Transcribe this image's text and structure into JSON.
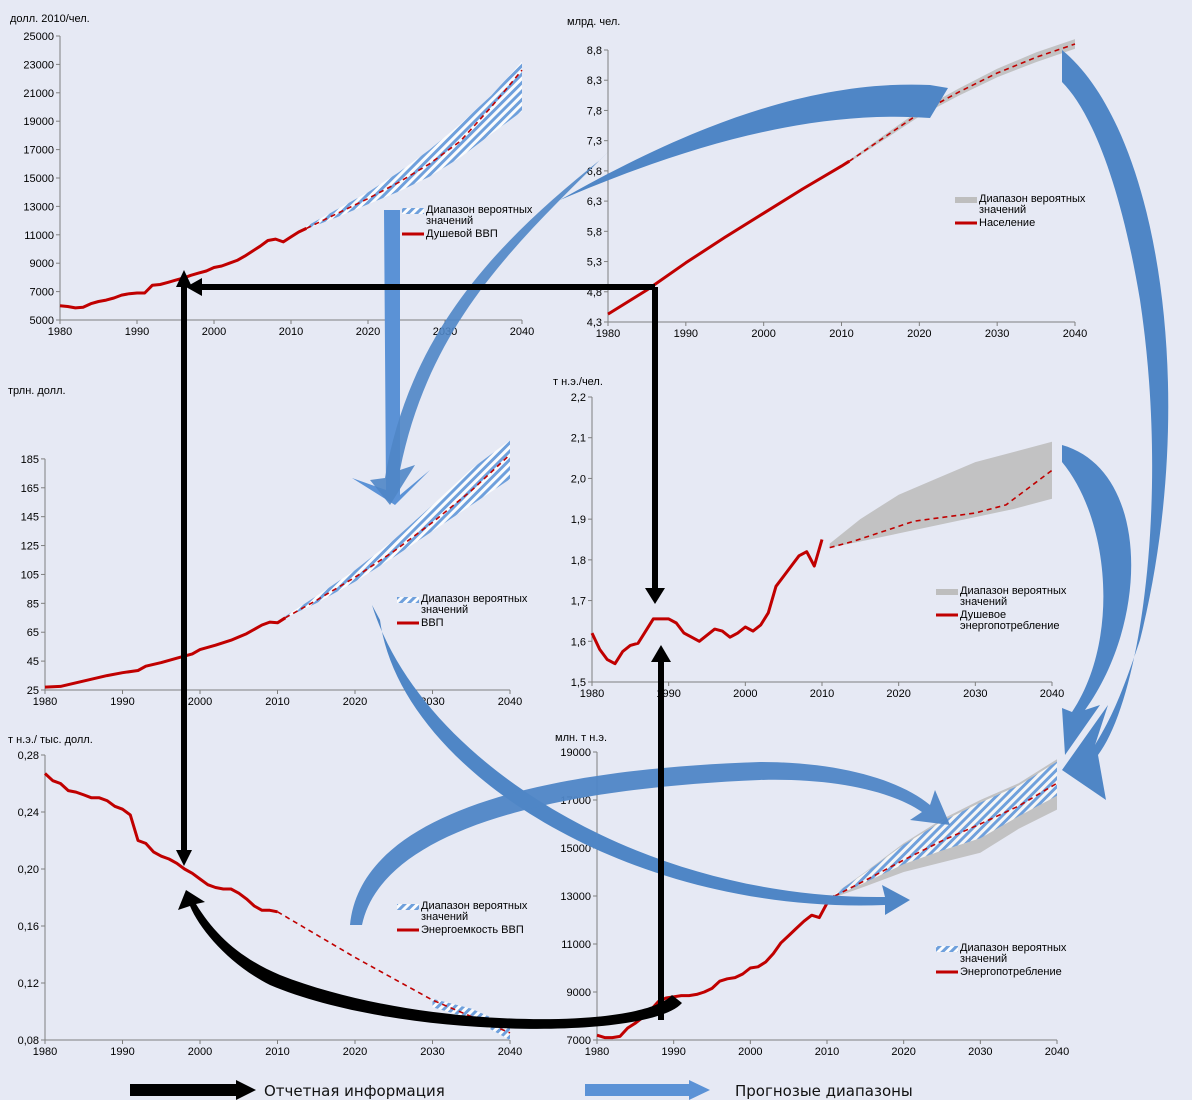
{
  "colors": {
    "background": "#E6E9F4",
    "actual_line": "#C00000",
    "forecast_range_hatch": "#6FA0DC",
    "forecast_range_gray": "#BEBEBE",
    "reported_arrow": "#000000",
    "forecast_arrow": "#4F86C6"
  },
  "bottom_legend": {
    "reported_label": "Отчетная информация",
    "forecast_label": "Прогнозые диапазоны"
  },
  "chart_data": [
    {
      "id": "gdp_per_capita",
      "type": "line",
      "unit_label": "долл. 2010/чел.",
      "ylim": [
        5000,
        25000
      ],
      "yticks": [
        5000,
        7000,
        9000,
        11000,
        13000,
        15000,
        17000,
        19000,
        21000,
        23000,
        25000
      ],
      "yticklabels": [
        "5000",
        "7000",
        "9000",
        "11000",
        "13000",
        "15000",
        "17000",
        "19000",
        "21000",
        "23000",
        "25000"
      ],
      "xlim": [
        1980,
        2040
      ],
      "xticks": [
        1980,
        1990,
        2000,
        2010,
        2020,
        2030,
        2040
      ],
      "xticklabels": [
        "1980",
        "1990",
        "2000",
        "2010",
        "2020",
        "2030",
        "2040"
      ],
      "range_style": "hatch",
      "legend": {
        "range": "Диапазон вероятных значений",
        "series": "Душевой ВВП"
      },
      "actual": {
        "x": [
          1980,
          1981,
          1982,
          1983,
          1984,
          1985,
          1986,
          1987,
          1988,
          1989,
          1990,
          1991,
          1992,
          1993,
          1994,
          1995,
          1996,
          1997,
          1998,
          1999,
          2000,
          2001,
          2002,
          2003,
          2004,
          2005,
          2006,
          2007,
          2008,
          2009,
          2010,
          2011,
          2012
        ],
        "y": [
          6000,
          5950,
          5850,
          5900,
          6150,
          6300,
          6400,
          6550,
          6750,
          6850,
          6900,
          6900,
          7450,
          7500,
          7650,
          7800,
          7950,
          8150,
          8300,
          8450,
          8700,
          8800,
          9000,
          9200,
          9500,
          9850,
          10200,
          10600,
          10700,
          10500,
          10850,
          11200,
          11450
        ]
      },
      "forecast": {
        "x": [
          2012,
          2016,
          2020,
          2024,
          2028,
          2032,
          2036,
          2040
        ],
        "y": [
          11450,
          12500,
          13550,
          14700,
          16000,
          17600,
          20000,
          22600
        ]
      },
      "range_band": {
        "x": [
          2012,
          2016,
          2020,
          2024,
          2028,
          2032,
          2036,
          2040
        ],
        "low": [
          11400,
          12250,
          13150,
          14050,
          15100,
          16450,
          18100,
          19700
        ],
        "high": [
          11600,
          12800,
          14000,
          15400,
          17000,
          18800,
          20800,
          23200
        ]
      }
    },
    {
      "id": "population",
      "type": "line",
      "unit_label": "млрд. чел.",
      "ylim": [
        4.3,
        8.8
      ],
      "yticks": [
        4.3,
        4.8,
        5.3,
        5.8,
        6.3,
        6.8,
        7.3,
        7.8,
        8.3,
        8.8
      ],
      "yticklabels": [
        "4,3",
        "4,8",
        "5,3",
        "5,8",
        "6,3",
        "6,8",
        "7,3",
        "7,8",
        "8,3",
        "8,8"
      ],
      "xlim": [
        1980,
        2040
      ],
      "xticks": [
        1980,
        1990,
        2000,
        2010,
        2020,
        2030,
        2040
      ],
      "xticklabels": [
        "1980",
        "1990",
        "2000",
        "2010",
        "2020",
        "2030",
        "2040"
      ],
      "range_style": "gray",
      "legend": {
        "range": "Диапазон вероятных значений",
        "series": "Население"
      },
      "actual": {
        "x": [
          1980,
          1985,
          1990,
          1995,
          2000,
          2005,
          2010,
          2011
        ],
        "y": [
          4.43,
          4.83,
          5.28,
          5.7,
          6.1,
          6.5,
          6.88,
          6.96
        ]
      },
      "forecast": {
        "x": [
          2011,
          2016,
          2020,
          2025,
          2030,
          2035,
          2040
        ],
        "y": [
          6.96,
          7.4,
          7.75,
          8.1,
          8.42,
          8.68,
          8.9
        ]
      },
      "range_band": {
        "x": [
          2011,
          2016,
          2020,
          2025,
          2030,
          2035,
          2040
        ],
        "low": [
          6.94,
          7.36,
          7.7,
          8.04,
          8.35,
          8.6,
          8.82
        ],
        "high": [
          6.98,
          7.44,
          7.8,
          8.16,
          8.49,
          8.76,
          8.98
        ]
      }
    },
    {
      "id": "gdp",
      "type": "line",
      "unit_label": "трлн. долл.",
      "ylim": [
        25,
        185
      ],
      "ymax": 205,
      "yticks": [
        25,
        45,
        65,
        85,
        105,
        125,
        145,
        165,
        185
      ],
      "yticklabels": [
        "25",
        "45",
        "65",
        "85",
        "105",
        "125",
        "145",
        "165",
        "185"
      ],
      "xlim": [
        1980,
        2040
      ],
      "xticks": [
        1980,
        1990,
        2000,
        2010,
        2020,
        2030,
        2040
      ],
      "xticklabels": [
        "1980",
        "1990",
        "2000",
        "2010",
        "2020",
        "2030",
        "2040"
      ],
      "range_style": "hatch",
      "legend": {
        "range": "Диапазон вероятных значений",
        "series": "ВВП"
      },
      "actual": {
        "x": [
          1980,
          1982,
          1984,
          1986,
          1988,
          1990,
          1992,
          1993,
          1995,
          1997,
          1999,
          2000,
          2002,
          2004,
          2006,
          2008,
          2009,
          2010,
          2011
        ],
        "y": [
          27,
          27.5,
          30,
          32.5,
          35,
          37,
          38.5,
          41.5,
          44,
          47,
          50,
          53,
          56,
          59.5,
          64,
          70,
          72,
          71.5,
          75
        ]
      },
      "forecast": {
        "x": [
          2011,
          2015,
          2020,
          2025,
          2030,
          2035,
          2040
        ],
        "y": [
          75,
          87,
          103,
          121,
          141,
          163,
          188
        ]
      },
      "range_band": {
        "x": [
          2011,
          2015,
          2020,
          2025,
          2030,
          2035,
          2040
        ],
        "low": [
          75,
          85,
          100,
          117,
          135,
          153,
          171
        ],
        "high": [
          76,
          90,
          108,
          129,
          153,
          178,
          198
        ]
      }
    },
    {
      "id": "energy_per_capita",
      "type": "line",
      "unit_label": "т н.э./чел.",
      "ylim": [
        1.5,
        2.2
      ],
      "yticks": [
        1.5,
        1.6,
        1.7,
        1.8,
        1.9,
        2.0,
        2.1,
        2.2
      ],
      "yticklabels": [
        "1,5",
        "1,6",
        "1,7",
        "1,8",
        "1,9",
        "2,0",
        "2,1",
        "2,2"
      ],
      "xlim": [
        1980,
        2040
      ],
      "xticks": [
        1980,
        1990,
        2000,
        2010,
        2020,
        2030,
        2040
      ],
      "xticklabels": [
        "1980",
        "1990",
        "2000",
        "2010",
        "2020",
        "2030",
        "2040"
      ],
      "range_style": "gray",
      "legend": {
        "range": "Диапазон вероятных значений",
        "series": "Душевое энергопотребление"
      },
      "actual": {
        "x": [
          1980,
          1981,
          1982,
          1983,
          1984,
          1985,
          1986,
          1987,
          1988,
          1989,
          1990,
          1991,
          1992,
          1993,
          1994,
          1995,
          1996,
          1997,
          1998,
          1999,
          2000,
          2001,
          2002,
          2003,
          2004,
          2005,
          2006,
          2007,
          2008,
          2009,
          2010
        ],
        "y": [
          1.62,
          1.58,
          1.555,
          1.545,
          1.575,
          1.59,
          1.595,
          1.625,
          1.655,
          1.655,
          1.655,
          1.645,
          1.62,
          1.61,
          1.6,
          1.615,
          1.63,
          1.625,
          1.61,
          1.62,
          1.635,
          1.625,
          1.64,
          1.67,
          1.735,
          1.76,
          1.785,
          1.81,
          1.82,
          1.785,
          1.85
        ]
      },
      "forecast": {
        "x": [
          2011,
          2014,
          2018,
          2022,
          2026,
          2030,
          2034,
          2040
        ],
        "y": [
          1.83,
          1.845,
          1.87,
          1.895,
          1.905,
          1.915,
          1.935,
          2.02
        ]
      },
      "range_band": {
        "x": [
          2011,
          2015,
          2020,
          2025,
          2030,
          2035,
          2040
        ],
        "low": [
          1.83,
          1.845,
          1.865,
          1.885,
          1.905,
          1.925,
          1.95
        ],
        "high": [
          1.84,
          1.9,
          1.96,
          2.0,
          2.04,
          2.065,
          2.09
        ]
      }
    },
    {
      "id": "energy_intensity",
      "type": "line",
      "unit_label": "т н.э./ тыс. долл.",
      "ylim": [
        0.08,
        0.28
      ],
      "yticks": [
        0.08,
        0.12,
        0.16,
        0.2,
        0.24,
        0.28
      ],
      "yticklabels": [
        "0,08",
        "0,12",
        "0,16",
        "0,20",
        "0,24",
        "0,28"
      ],
      "xlim": [
        1980,
        2040
      ],
      "xticks": [
        1980,
        1990,
        2000,
        2010,
        2020,
        2030,
        2040
      ],
      "xticklabels": [
        "1980",
        "1990",
        "2000",
        "2010",
        "2020",
        "2030",
        "2040"
      ],
      "range_style": "hatch",
      "legend": {
        "range": "Диапазон вероятных значений",
        "series": "Энергоемкость ВВП"
      },
      "actual": {
        "x": [
          1980,
          1981,
          1982,
          1983,
          1984,
          1985,
          1986,
          1987,
          1988,
          1989,
          1990,
          1991,
          1992,
          1993,
          1994,
          1995,
          1996,
          1997,
          1998,
          1999,
          2000,
          2001,
          2002,
          2003,
          2004,
          2005,
          2006,
          2007,
          2008,
          2009,
          2010
        ],
        "y": [
          0.267,
          0.262,
          0.26,
          0.255,
          0.254,
          0.252,
          0.25,
          0.25,
          0.248,
          0.244,
          0.242,
          0.238,
          0.22,
          0.218,
          0.212,
          0.209,
          0.207,
          0.204,
          0.2,
          0.197,
          0.193,
          0.189,
          0.187,
          0.186,
          0.186,
          0.183,
          0.179,
          0.174,
          0.171,
          0.171,
          0.17
        ]
      },
      "forecast": {
        "x": [
          2010,
          2020,
          2030,
          2040
        ],
        "y": [
          0.17,
          0.138,
          0.108,
          0.085
        ]
      },
      "range_band": {
        "x": [
          2030,
          2035,
          2040
        ],
        "low": [
          0.103,
          0.095,
          0.08
        ],
        "high": [
          0.109,
          0.102,
          0.09
        ]
      }
    },
    {
      "id": "energy_consumption",
      "type": "line",
      "unit_label": "млн. т н.э.",
      "ylim": [
        7000,
        19000
      ],
      "yticks": [
        7000,
        9000,
        11000,
        13000,
        15000,
        17000,
        19000
      ],
      "yticklabels": [
        "7000",
        "9000",
        "11000",
        "13000",
        "15000",
        "17000",
        "19000"
      ],
      "xlim": [
        1980,
        2040
      ],
      "xticks": [
        1980,
        1990,
        2000,
        2010,
        2020,
        2030,
        2040
      ],
      "xticklabels": [
        "1980",
        "1990",
        "2000",
        "2010",
        "2020",
        "2030",
        "2040"
      ],
      "range_style": "both",
      "legend": {
        "range": "Диапазон вероятных значений",
        "series": "Энергопотребление"
      },
      "actual": {
        "x": [
          1980,
          1981,
          1982,
          1983,
          1984,
          1985,
          1986,
          1987,
          1988,
          1989,
          1990,
          1991,
          1992,
          1993,
          1994,
          1995,
          1996,
          1997,
          1998,
          1999,
          2000,
          2001,
          2002,
          2003,
          2004,
          2005,
          2006,
          2007,
          2008,
          2009,
          2010,
          2011
        ],
        "y": [
          7200,
          7100,
          7100,
          7150,
          7500,
          7700,
          7950,
          8250,
          8600,
          8750,
          8800,
          8850,
          8850,
          8900,
          9000,
          9150,
          9450,
          9550,
          9600,
          9750,
          10000,
          10050,
          10250,
          10600,
          11050,
          11350,
          11650,
          11950,
          12200,
          12100,
          12700,
          13000
        ]
      },
      "forecast": {
        "x": [
          2011,
          2015,
          2020,
          2025,
          2030,
          2035,
          2040
        ],
        "y": [
          13000,
          13650,
          14500,
          15300,
          16000,
          16750,
          17700
        ]
      },
      "range_band": {
        "x": [
          2011,
          2015,
          2020,
          2025,
          2030,
          2035,
          2040
        ],
        "low": [
          12950,
          13400,
          14000,
          14400,
          14800,
          15800,
          16600
        ],
        "high": [
          13100,
          14000,
          15200,
          16200,
          17000,
          17700,
          18700
        ]
      }
    }
  ]
}
